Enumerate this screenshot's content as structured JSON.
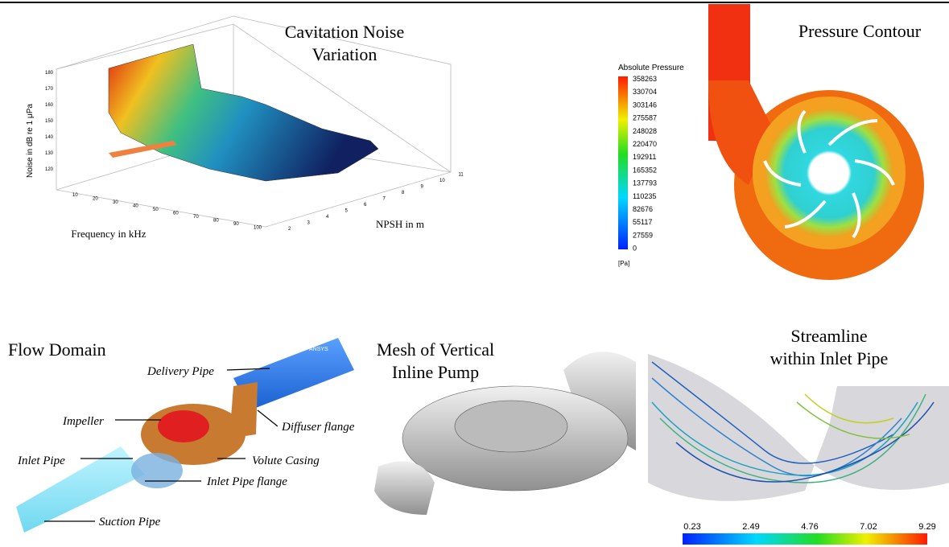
{
  "panels": {
    "cavitation": {
      "title_lines": [
        "Cavitation Noise",
        "Variation"
      ],
      "y_label": "Noise in dB re 1 μPa",
      "x_label": "Frequency in kHz",
      "z_label": "NPSH in m",
      "yticks": [
        180,
        170,
        160,
        150,
        140,
        130,
        120
      ],
      "xticks": [
        10,
        20,
        30,
        40,
        50,
        60,
        70,
        80,
        90,
        100
      ],
      "zticks": [
        2,
        3,
        4,
        5,
        6,
        7,
        8,
        9,
        10,
        11
      ]
    },
    "pressure": {
      "title": "Pressure Contour",
      "legend_title": "Absolute  Pressure",
      "legend_values": [
        358263,
        330704,
        303146,
        275587,
        248028,
        220470,
        192911,
        165352,
        137793,
        110235,
        82676,
        55117,
        27559,
        0
      ],
      "unit": "[Pa]"
    },
    "flow_domain": {
      "title": "Flow Domain",
      "logo": "ANSYS",
      "labels": [
        "Delivery Pipe",
        "Impeller",
        "Diffuser flange",
        "Inlet Pipe",
        "Volute Casing",
        "Inlet Pipe flange",
        "Suction Pipe"
      ]
    },
    "mesh": {
      "title_lines": [
        "Mesh of Vertical",
        "Inline Pump"
      ]
    },
    "streamline": {
      "title_lines": [
        "Streamline",
        "within Inlet Pipe"
      ],
      "colorbar_ticks": [
        0.23,
        2.49,
        4.76,
        7.02,
        9.29
      ]
    }
  }
}
